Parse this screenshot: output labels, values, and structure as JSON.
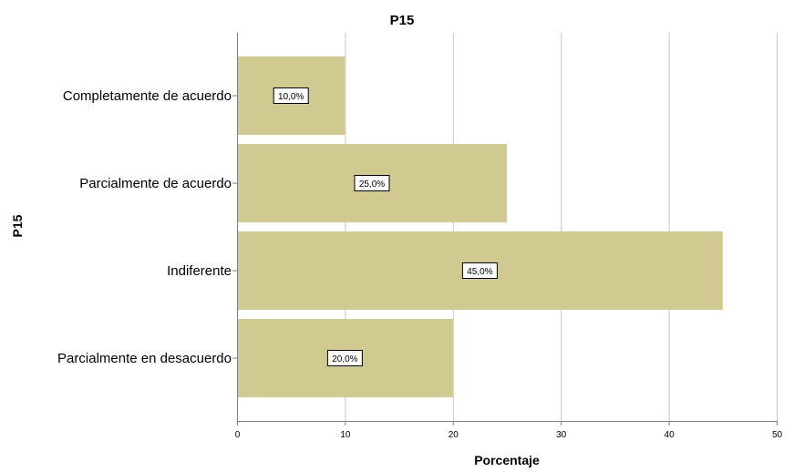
{
  "chart_data": {
    "type": "bar",
    "orientation": "horizontal",
    "title": "P15",
    "xlabel": "Porcentaje",
    "ylabel": "P15",
    "categories": [
      "Completamente de acuerdo",
      "Parcialmente de acuerdo",
      "Indiferente",
      "Parcialmente en desacuerdo"
    ],
    "values": [
      10,
      25,
      45,
      20
    ],
    "data_labels": [
      "10,0%",
      "25,0%",
      "45,0%",
      "20,0%"
    ],
    "xlim": [
      0,
      50
    ],
    "xticks": [
      0,
      10,
      20,
      30,
      40,
      50
    ],
    "xtick_labels": [
      "0",
      "10",
      "20",
      "30",
      "40",
      "50"
    ],
    "grid": "vertical",
    "bar_color": "#d0c990",
    "grid_color": "#c8c8c8",
    "axis_color": "#808080"
  }
}
